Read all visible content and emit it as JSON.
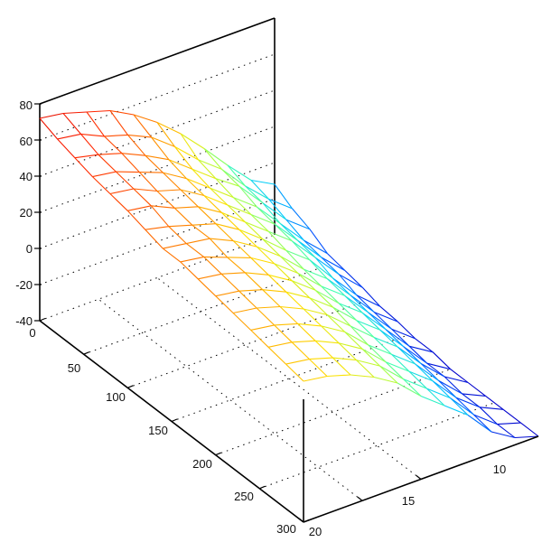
{
  "chart_data": {
    "type": "surface",
    "title": "",
    "xlabel": "",
    "ylabel": "",
    "zlabel": "",
    "grid": true,
    "colormap": "jet",
    "colormap_stops": [
      "#0000cc",
      "#0050ff",
      "#00c8ff",
      "#40ffb0",
      "#b0ff40",
      "#ffe000",
      "#ff8000",
      "#ff2000",
      "#cc0000"
    ],
    "z_axis": {
      "range": [
        -40,
        80
      ],
      "ticks": [
        -40,
        -20,
        0,
        20,
        40,
        60,
        80
      ],
      "tick_labels": [
        "-40",
        "-20",
        "0",
        "20",
        "40",
        "60",
        "80"
      ]
    },
    "row_axis": {
      "range": [
        0,
        300
      ],
      "ticks": [
        0,
        50,
        100,
        150,
        200,
        250,
        300
      ],
      "tick_labels": [
        "0",
        "50",
        "100",
        "150",
        "200",
        "250",
        "300"
      ]
    },
    "col_axis": {
      "range": [
        20,
        0
      ],
      "ticks": [
        20,
        15,
        10
      ],
      "tick_labels": [
        "20",
        "15",
        "10"
      ]
    },
    "surface": {
      "rows": [
        0,
        20,
        40,
        60,
        80,
        100,
        120,
        140,
        160,
        180,
        200,
        220,
        240,
        260,
        280,
        300
      ],
      "cols": [
        0,
        2,
        4,
        6,
        8,
        10,
        12,
        14,
        16,
        18,
        20
      ],
      "z": [
        [
          -12,
          -5,
          8,
          22,
          35,
          46,
          55,
          62,
          66,
          70,
          72
        ],
        [
          -18,
          -8,
          4,
          18,
          28,
          40,
          50,
          56,
          60,
          66,
          68
        ],
        [
          -22,
          -12,
          2,
          16,
          25,
          35,
          45,
          52,
          58,
          62,
          65
        ],
        [
          -28,
          -16,
          -2,
          12,
          22,
          32,
          42,
          50,
          55,
          60,
          62
        ],
        [
          -30,
          -18,
          -4,
          10,
          20,
          30,
          40,
          48,
          52,
          58,
          60
        ],
        [
          -32,
          -20,
          -6,
          8,
          18,
          28,
          38,
          46,
          50,
          56,
          58
        ],
        [
          -35,
          -24,
          -10,
          5,
          15,
          26,
          36,
          44,
          48,
          52,
          55
        ],
        [
          -36,
          -26,
          -12,
          2,
          12,
          24,
          34,
          42,
          48,
          50,
          52
        ],
        [
          -38,
          -28,
          -14,
          0,
          10,
          22,
          32,
          40,
          45,
          50,
          52
        ],
        [
          -38,
          -30,
          -16,
          -2,
          8,
          20,
          30,
          38,
          44,
          48,
          50
        ],
        [
          -40,
          -32,
          -18,
          -4,
          6,
          18,
          28,
          36,
          42,
          46,
          48
        ],
        [
          -40,
          -32,
          -20,
          -6,
          4,
          15,
          26,
          34,
          40,
          44,
          46
        ],
        [
          -40,
          -34,
          -22,
          -8,
          2,
          12,
          24,
          32,
          38,
          42,
          44
        ],
        [
          -40,
          -34,
          -24,
          -10,
          0,
          10,
          22,
          30,
          36,
          40,
          42
        ],
        [
          -40,
          -36,
          -26,
          -12,
          -2,
          8,
          20,
          28,
          34,
          38,
          40
        ],
        [
          -40,
          -36,
          -28,
          -14,
          -4,
          6,
          18,
          26,
          32,
          36,
          38
        ]
      ]
    }
  }
}
